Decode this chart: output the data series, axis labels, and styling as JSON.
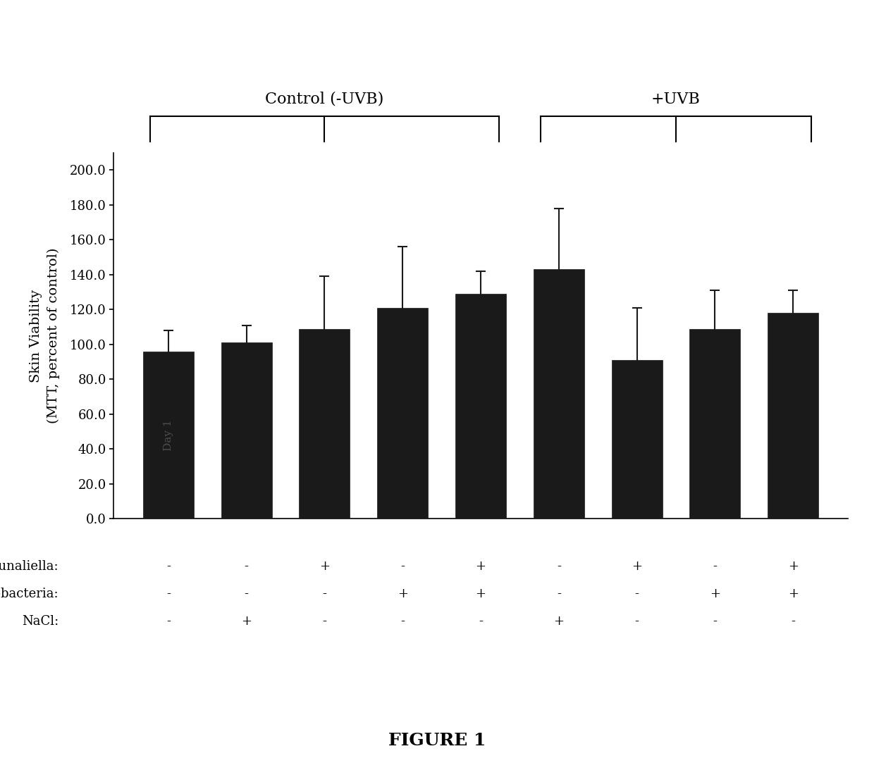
{
  "bar_values": [
    96,
    101,
    109,
    121,
    129,
    143,
    91,
    109,
    118
  ],
  "bar_errors": [
    12,
    10,
    30,
    35,
    13,
    35,
    30,
    22,
    13
  ],
  "bar_color": "#1a1a1a",
  "bar_width": 0.65,
  "ylim": [
    0,
    210
  ],
  "yticks": [
    0.0,
    20.0,
    40.0,
    60.0,
    80.0,
    100.0,
    120.0,
    140.0,
    160.0,
    180.0,
    200.0
  ],
  "ylabel_line1": "Skin Viability",
  "ylabel_line2": "(MTT, percent of control)",
  "xlabel_rows": [
    [
      "Dunaliella:",
      "-",
      "-",
      "+",
      "-",
      "+",
      "-",
      "+",
      "-",
      "+"
    ],
    [
      "Halobacteria:",
      "-",
      "-",
      "-",
      "+",
      "+",
      "-",
      "-",
      "+",
      "+"
    ],
    [
      "NaCl:",
      "-",
      "+",
      "-",
      "-",
      "-",
      "+",
      "-",
      "-",
      "-"
    ]
  ],
  "control_label": "Control (-UVB)",
  "uvb_label": "+UVB",
  "watermark_text": "Day 1",
  "figure_label": "FIGURE 1",
  "background_color": "#ffffff",
  "bar_edge_color": "#1a1a1a",
  "error_bar_color": "#1a1a1a",
  "error_capsize": 5,
  "error_linewidth": 1.5
}
